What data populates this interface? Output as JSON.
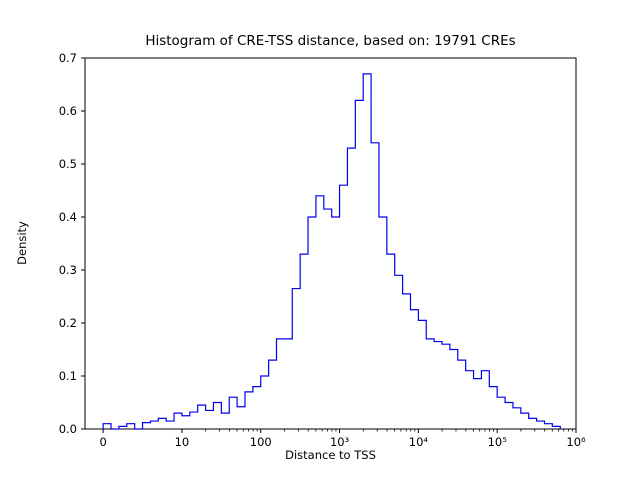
{
  "figure": {
    "background_color": "#ffffff",
    "axes_color": "#000000"
  },
  "chart_data": {
    "type": "histogram-step",
    "title": "Histogram of CRE-TSS distance, based on: 19791 CREs",
    "xlabel": "Distance to TSS",
    "ylabel": "Density",
    "x_scale": "symlog-decades",
    "line_color": "#0000ee",
    "ylim": [
      0.0,
      0.7
    ],
    "xlim_u": [
      -0.23,
      6.0
    ],
    "x_ticks": [
      {
        "u": 0,
        "label": "0"
      },
      {
        "u": 1,
        "label": "10"
      },
      {
        "u": 2,
        "label": "100"
      },
      {
        "u": 3,
        "label": "10³"
      },
      {
        "u": 4,
        "label": "10⁴"
      },
      {
        "u": 5,
        "label": "10⁵"
      },
      {
        "u": 6,
        "label": "10⁶"
      }
    ],
    "y_ticks": [
      {
        "v": 0.0,
        "label": "0.0"
      },
      {
        "v": 0.1,
        "label": "0.1"
      },
      {
        "v": 0.2,
        "label": "0.2"
      },
      {
        "v": 0.3,
        "label": "0.3"
      },
      {
        "v": 0.4,
        "label": "0.4"
      },
      {
        "v": 0.5,
        "label": "0.5"
      },
      {
        "v": 0.6,
        "label": "0.6"
      },
      {
        "v": 0.7,
        "label": "0.7"
      }
    ],
    "bins": {
      "u_start": 0.0,
      "u_width": 0.1,
      "densities": [
        0.01,
        0.0,
        0.005,
        0.01,
        0.0,
        0.012,
        0.015,
        0.02,
        0.015,
        0.03,
        0.025,
        0.032,
        0.045,
        0.035,
        0.05,
        0.03,
        0.06,
        0.042,
        0.07,
        0.08,
        0.1,
        0.13,
        0.17,
        0.17,
        0.265,
        0.33,
        0.4,
        0.44,
        0.415,
        0.4,
        0.46,
        0.53,
        0.62,
        0.67,
        0.54,
        0.4,
        0.33,
        0.29,
        0.255,
        0.225,
        0.205,
        0.17,
        0.165,
        0.16,
        0.15,
        0.13,
        0.11,
        0.095,
        0.11,
        0.08,
        0.06,
        0.05,
        0.04,
        0.03,
        0.02,
        0.015,
        0.01,
        0.005
      ]
    }
  }
}
